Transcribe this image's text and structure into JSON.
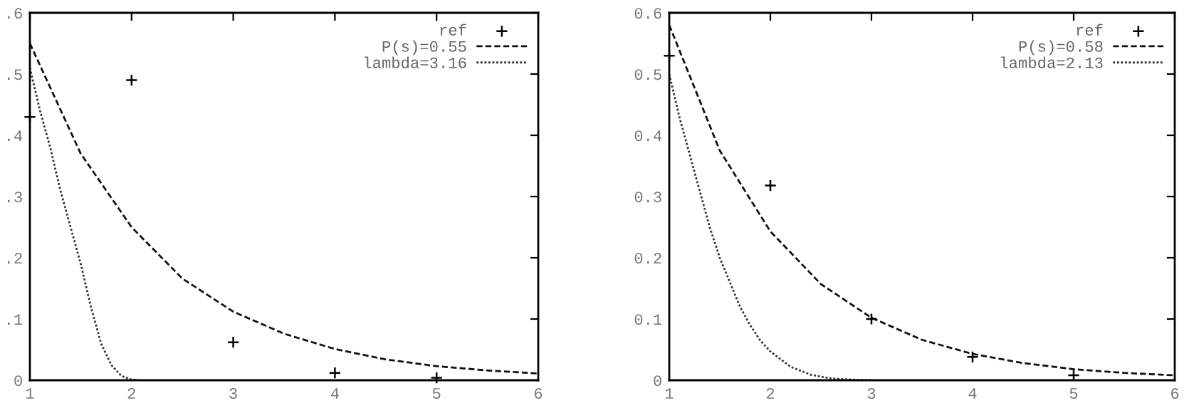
{
  "chart_data": [
    {
      "type": "line",
      "legend": "top right",
      "grid": false,
      "xlim": [
        1,
        6
      ],
      "ylim": [
        0,
        0.6
      ],
      "xticks": [
        1,
        2,
        3,
        4,
        5,
        6
      ],
      "yticks": [
        {
          "value": 0,
          "label": "0"
        },
        {
          "value": 0.1,
          "label": ".1"
        },
        {
          "value": 0.2,
          "label": ".2"
        },
        {
          "value": 0.3,
          "label": ".3"
        },
        {
          "value": 0.4,
          "label": ".4"
        },
        {
          "value": 0.5,
          "label": ".5"
        },
        {
          "value": 0.6,
          "label": ".6"
        }
      ],
      "series": [
        {
          "name": "ref",
          "type": "scatter",
          "marker": "cross",
          "color": "#000000",
          "x": [
            1,
            2,
            3,
            4,
            5
          ],
          "values": [
            0.43,
            0.49,
            0.062,
            0.012,
            0.004
          ]
        },
        {
          "name": "P(s)=0.55",
          "line_style": "dashed",
          "color": "#111111",
          "x": [
            1,
            1.5,
            2,
            2.5,
            3,
            3.5,
            4,
            4.5,
            5,
            5.5,
            6
          ],
          "values": [
            0.55,
            0.37,
            0.25,
            0.166,
            0.112,
            0.076,
            0.051,
            0.034,
            0.023,
            0.016,
            0.011
          ]
        },
        {
          "name": "lambda=3.16",
          "line_style": "dotted",
          "color": "#333333",
          "x": [
            1,
            1.1,
            1.2,
            1.3,
            1.4,
            1.5,
            1.6,
            1.7,
            1.8,
            1.9,
            2.0,
            2.1
          ],
          "values": [
            0.51,
            0.44,
            0.38,
            0.31,
            0.25,
            0.19,
            0.12,
            0.06,
            0.025,
            0.007,
            0.001,
            0
          ]
        }
      ]
    },
    {
      "type": "line",
      "legend": "top right",
      "grid": false,
      "xlim": [
        1,
        6
      ],
      "ylim": [
        0,
        0.6
      ],
      "xticks": [
        1,
        2,
        3,
        4,
        5,
        6
      ],
      "yticks": [
        0,
        0.1,
        0.2,
        0.3,
        0.4,
        0.5,
        0.6
      ],
      "series": [
        {
          "name": "ref",
          "type": "scatter",
          "marker": "cross",
          "color": "#000000",
          "x": [
            1,
            2,
            3,
            4,
            5
          ],
          "values": [
            0.53,
            0.318,
            0.1,
            0.038,
            0.008
          ]
        },
        {
          "name": "P(s)=0.58",
          "line_style": "dashed",
          "color": "#111111",
          "x": [
            1,
            1.5,
            2,
            2.5,
            3,
            3.5,
            4,
            4.5,
            5,
            5.5,
            6
          ],
          "values": [
            0.58,
            0.375,
            0.243,
            0.157,
            0.102,
            0.066,
            0.043,
            0.028,
            0.018,
            0.012,
            0.008
          ]
        },
        {
          "name": "lambda=2.13",
          "line_style": "dotted",
          "color": "#333333",
          "x": [
            1,
            1.1,
            1.2,
            1.3,
            1.4,
            1.5,
            1.6,
            1.7,
            1.8,
            1.9,
            2.0,
            2.2,
            2.4,
            2.6,
            2.8,
            3.0
          ],
          "values": [
            0.5,
            0.43,
            0.37,
            0.31,
            0.25,
            0.2,
            0.16,
            0.12,
            0.09,
            0.065,
            0.047,
            0.022,
            0.009,
            0.003,
            0.001,
            0
          ]
        }
      ]
    }
  ]
}
